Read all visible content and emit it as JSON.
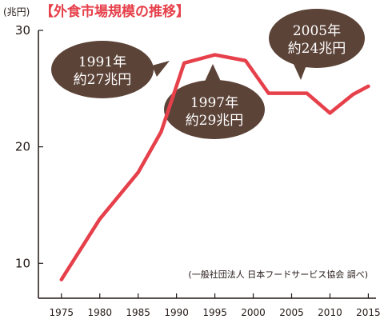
{
  "chart_data": {
    "type": "line",
    "title": "【外食市場規模の推移】",
    "ylabel": "(兆円)",
    "xlabel": "",
    "ylim": [
      7,
      30
    ],
    "xlim": [
      1972,
      2016
    ],
    "y_ticks": [
      10,
      20,
      30
    ],
    "x_ticks": [
      1975,
      1980,
      1985,
      1990,
      1995,
      2000,
      2005,
      2010,
      2015
    ],
    "grid": false,
    "line_color": "#e6404b",
    "series": [
      {
        "x": [
          1975,
          1980,
          1985,
          1988,
          1991,
          1995,
          1999,
          2002,
          2005,
          2007,
          2010,
          2013,
          2015
        ],
        "values": [
          8.6,
          13.8,
          17.8,
          21.3,
          27.2,
          27.9,
          27.4,
          24.6,
          24.6,
          24.6,
          22.9,
          24.5,
          25.2
        ]
      }
    ],
    "annotations": [
      {
        "year": 1991,
        "line1": "1991年",
        "line2": "約27兆円"
      },
      {
        "year": 1997,
        "line1": "1997年",
        "line2": "約29兆円"
      },
      {
        "year": 2005,
        "line1": "2005年",
        "line2": "約24兆円"
      }
    ],
    "source": "(一般社団法人 日本フードサービス協会 調べ)",
    "bubble_color": "#5c4338"
  }
}
